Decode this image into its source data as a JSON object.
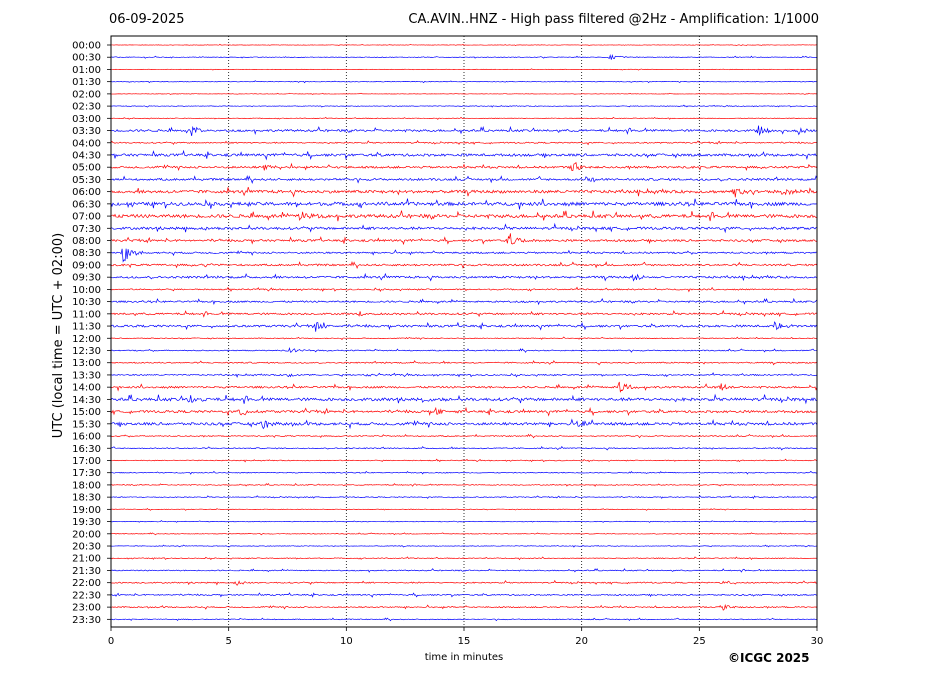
{
  "header": {
    "date": "06-09-2025",
    "title": "CA.AVIN..HNZ - High pass filtered @2Hz - Amplification: 1/1000",
    "copyright": "©ICGC 2025"
  },
  "colors": {
    "even_rows": "#ff0000",
    "odd_rows": "#0000ff",
    "grid": "#000000"
  },
  "chart_data": {
    "type": "line",
    "title": "CA.AVIN..HNZ - High pass filtered @2Hz - Amplification: 1/1000",
    "xlabel": "time in minutes",
    "ylabel": "UTC (local time = UTC + 02:00)",
    "xlim": [
      0,
      30
    ],
    "x_ticks": [
      0,
      5,
      10,
      15,
      20,
      25,
      30
    ],
    "vertical_grid": "dotted at 5, 10, 15, 20, 25",
    "row_labels": [
      "00:00",
      "00:30",
      "01:00",
      "01:30",
      "02:00",
      "02:30",
      "03:00",
      "03:30",
      "04:00",
      "04:30",
      "05:00",
      "05:30",
      "06:00",
      "06:30",
      "07:00",
      "07:30",
      "08:00",
      "08:30",
      "09:00",
      "09:30",
      "10:00",
      "10:30",
      "11:00",
      "11:30",
      "12:00",
      "12:30",
      "13:00",
      "13:30",
      "14:00",
      "14:30",
      "15:00",
      "15:30",
      "16:00",
      "16:30",
      "17:00",
      "17:30",
      "18:00",
      "18:30",
      "19:00",
      "19:30",
      "20:00",
      "20:30",
      "21:00",
      "21:30",
      "22:00",
      "22:30",
      "23:00",
      "23:30"
    ],
    "row_noise": [
      0.2,
      0.3,
      0.2,
      0.3,
      0.2,
      0.3,
      0.3,
      1.0,
      0.6,
      1.2,
      1.0,
      1.0,
      1.4,
      1.6,
      1.6,
      1.2,
      1.0,
      0.8,
      0.9,
      1.0,
      0.6,
      0.8,
      0.9,
      1.0,
      0.4,
      0.5,
      0.6,
      0.6,
      0.9,
      1.4,
      1.1,
      1.3,
      0.5,
      0.5,
      0.4,
      0.4,
      0.4,
      0.4,
      0.3,
      0.3,
      0.3,
      0.3,
      0.4,
      0.5,
      0.6,
      0.6,
      0.6,
      0.4
    ],
    "events": [
      {
        "row": 1,
        "t": 21.2,
        "amp": 3
      },
      {
        "row": 7,
        "t": 3.4,
        "amp": 6
      },
      {
        "row": 7,
        "t": 27.5,
        "amp": 5
      },
      {
        "row": 7,
        "t": 29.2,
        "amp": 4
      },
      {
        "row": 10,
        "t": 6.5,
        "amp": 4
      },
      {
        "row": 10,
        "t": 19.6,
        "amp": 5
      },
      {
        "row": 11,
        "t": 20.2,
        "amp": 4
      },
      {
        "row": 12,
        "t": 26.5,
        "amp": 5
      },
      {
        "row": 12,
        "t": 28.5,
        "amp": 4
      },
      {
        "row": 14,
        "t": 8.0,
        "amp": 5
      },
      {
        "row": 16,
        "t": 16.9,
        "amp": 8
      },
      {
        "row": 17,
        "t": 0.5,
        "amp": 12
      },
      {
        "row": 18,
        "t": 4.0,
        "amp": 2
      },
      {
        "row": 19,
        "t": 22.2,
        "amp": 4
      },
      {
        "row": 22,
        "t": 10.5,
        "amp": 3
      },
      {
        "row": 23,
        "t": 8.7,
        "amp": 5
      },
      {
        "row": 23,
        "t": 28.2,
        "amp": 5
      },
      {
        "row": 25,
        "t": 7.6,
        "amp": 3
      },
      {
        "row": 27,
        "t": 7.5,
        "amp": 2
      },
      {
        "row": 27,
        "t": 10.8,
        "amp": 2
      },
      {
        "row": 28,
        "t": 21.6,
        "amp": 6
      },
      {
        "row": 28,
        "t": 25.9,
        "amp": 4
      },
      {
        "row": 29,
        "t": 3.3,
        "amp": 4
      },
      {
        "row": 29,
        "t": 13.2,
        "amp": 3
      },
      {
        "row": 30,
        "t": 5.5,
        "amp": 4
      },
      {
        "row": 30,
        "t": 13.8,
        "amp": 4
      },
      {
        "row": 31,
        "t": 6.4,
        "amp": 6
      },
      {
        "row": 31,
        "t": 19.8,
        "amp": 5
      },
      {
        "row": 44,
        "t": 5.3,
        "amp": 3
      },
      {
        "row": 44,
        "t": 26.0,
        "amp": 2
      },
      {
        "row": 46,
        "t": 26.0,
        "amp": 3
      }
    ]
  }
}
